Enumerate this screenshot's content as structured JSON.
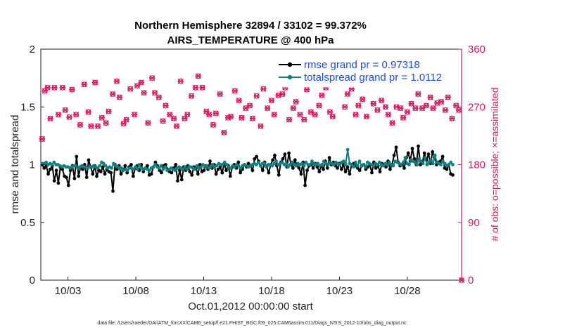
{
  "title_line1": "Northern Hemisphere 32894 / 33102 = 99.372%",
  "title_line2": "AIRS_TEMPERATURE @ 400 hPa",
  "footnote": "data file: /Users/raeder/DAI/ATM_forcXX/CAM6_setup/f.e21.FHIST_BGC.f09_025.CAM6assim.011/Diags_NTrS_2012-10/obs_diag_output.nc",
  "colors": {
    "rmse": "#000000",
    "spread": "#0e8080",
    "obs": "#d11a5c",
    "legend_text": "#1f4fd0"
  },
  "chart_data": {
    "type": "line",
    "xlabel": "Oct.01,2012 00:00:00 start",
    "ylabel": "rmse and totalspread",
    "y2label": "# of obs: o=possible; ×=assimilated",
    "x_ticks": [
      "10/03",
      "10/08",
      "10/13",
      "10/18",
      "10/23",
      "10/28"
    ],
    "x_tick_days": [
      2,
      7,
      12,
      17,
      22,
      27
    ],
    "xlim_days": [
      0,
      31
    ],
    "ylim": [
      0,
      2
    ],
    "y_ticks": [
      "0",
      "0.5",
      "1",
      "1.5",
      "2"
    ],
    "y2lim": [
      0,
      360
    ],
    "y2_ticks": [
      "0",
      "90",
      "180",
      "270",
      "360"
    ],
    "grid": false,
    "legend": "top-right",
    "legend_entries": [
      "rmse grand pr = 0.97318",
      "totalspread grand pr = 1.0112"
    ],
    "sample_interval_days": 0.25,
    "series": [
      {
        "name": "rmse grand pr = 0.97318",
        "axis": "left",
        "marker": "filled-circle",
        "values": [
          1.0,
          0.97,
          0.99,
          0.92,
          0.96,
          0.99,
          0.86,
          0.95,
          0.84,
          0.98,
          0.96,
          0.9,
          0.89,
          0.82,
          0.95,
          0.99,
          0.88,
          1.07,
          0.9,
          0.98,
          0.96,
          1.0,
          0.89,
          1.04,
          0.98,
          0.92,
          0.99,
          0.9,
          0.95,
          0.94,
          0.98,
          0.92,
          0.96,
          0.94,
          0.93,
          0.77,
          1.0,
          0.96,
          0.99,
          0.92,
          0.95,
          0.99,
          0.93,
          0.98,
          1.0,
          0.9,
          0.97,
          0.99,
          0.95,
          1.0,
          0.94,
          0.97,
          0.99,
          0.91,
          0.92,
          0.98,
          1.02,
          0.99,
          0.95,
          0.93,
          0.99,
          1.0,
          0.96,
          0.94,
          0.93,
          0.97,
          1.0,
          0.86,
          0.95,
          0.87,
          0.98,
          0.95,
          0.99,
          0.94,
          0.91,
          0.98,
          0.97,
          0.92,
          1.0,
          0.94,
          0.95,
          0.99,
          0.96,
          1.03,
          0.97,
          1.0,
          0.92,
          0.96,
          0.98,
          0.93,
          1.01,
          0.95,
          0.99,
          0.9,
          0.98,
          1.0,
          0.97,
          1.02,
          0.93,
          0.96,
          1.0,
          0.98,
          1.01,
          0.99,
          0.95,
          1.05,
          1.07,
          1.03,
          0.99,
          0.95,
          1.02,
          0.98,
          0.93,
          1.0,
          1.04,
          1.08,
          0.99,
          0.91,
          1.02,
          1.05,
          1.09,
          0.98,
          1.1,
          1.0,
          0.97,
          1.04,
          0.99,
          0.97,
          0.92,
          1.02,
          0.82,
          0.95,
          0.99,
          1.0,
          0.97,
          1.01,
          0.98,
          0.94,
          0.99,
          0.96,
          1.03,
          0.97,
          1.06,
          1.0,
          1.02,
          0.99,
          0.97,
          1.01,
          0.96,
          1.0,
          0.94,
          0.98,
          0.92,
          1.0,
          1.01,
          0.99,
          0.97,
          0.95,
          0.99,
          1.0,
          0.96,
          0.98,
          1.0,
          0.93,
          1.02,
          0.97,
          0.99,
          0.94,
          1.01,
          1.0,
          0.98,
          1.03,
          0.96,
          1.0,
          1.08,
          1.15,
          1.02,
          0.99,
          1.0,
          0.97,
          1.06,
          1.1,
          1.03,
          1.14,
          1.05,
          1.0,
          1.16,
          1.0,
          1.02,
          1.1,
          1.04,
          1.09,
          1.01,
          1.11,
          1.06,
          1.0,
          1.02,
          1.03,
          1.07,
          0.97,
          0.96,
          1.0,
          0.92,
          0.91
        ],
        "color": "#000000"
      },
      {
        "name": "totalspread grand pr = 1.0112",
        "axis": "left",
        "marker": "filled-circle",
        "values": [
          1.01,
          1.01,
          1.02,
          1.0,
          1.01,
          1.0,
          1.02,
          1.0,
          1.0,
          0.99,
          0.98,
          0.99,
          0.98,
          0.98,
          0.97,
          0.98,
          0.99,
          0.99,
          0.97,
          0.98,
          0.99,
          0.98,
          0.98,
          0.97,
          0.98,
          0.98,
          0.99,
          0.98,
          0.97,
          0.99,
          1.02,
          1.01,
          0.99,
          0.97,
          0.98,
          0.97,
          1.01,
          0.99,
          0.98,
          0.97,
          0.97,
          0.95,
          0.96,
          0.95,
          0.97,
          0.97,
          0.96,
          0.98,
          0.96,
          1.0,
          0.97,
          0.96,
          0.97,
          0.96,
          0.95,
          0.97,
          0.98,
          1.0,
          0.98,
          0.97,
          0.99,
          0.96,
          0.98,
          0.95,
          0.96,
          0.97,
          0.96,
          0.95,
          0.97,
          0.98,
          0.97,
          0.96,
          0.98,
          0.96,
          0.98,
          0.98,
          0.97,
          0.96,
          0.99,
          0.97,
          0.98,
          1.0,
          0.98,
          0.99,
          0.97,
          0.98,
          1.0,
          0.98,
          0.99,
          1.01,
          1.0,
          1.0,
          1.02,
          1.0,
          0.98,
          0.97,
          0.99,
          0.98,
          1.0,
          0.99,
          0.97,
          0.99,
          1.0,
          0.99,
          0.98,
          0.99,
          1.0,
          1.01,
          1.0,
          1.02,
          0.99,
          1.01,
          1.01,
          0.98,
          1.0,
          1.0,
          0.99,
          1.01,
          1.03,
          1.0,
          1.01,
          1.02,
          1.0,
          1.01,
          0.98,
          1.0,
          1.02,
          1.0,
          0.99,
          1.01,
          1.0,
          1.01,
          0.99,
          1.02,
          1.0,
          1.0,
          1.03,
          1.01,
          1.0,
          1.01,
          0.99,
          1.0,
          1.03,
          1.01,
          1.0,
          1.02,
          1.01,
          1.0,
          1.02,
          1.01,
          1.0,
          1.02,
          1.03,
          1.0,
          1.13,
          1.01,
          1.0,
          0.98,
          1.02,
          0.99,
          1.03,
          0.99,
          1.0,
          0.98,
          1.02,
          1.01,
          1.0,
          0.99,
          1.01,
          1.0,
          1.02,
          1.0,
          0.99,
          1.01,
          1.0,
          1.02,
          1.0,
          0.99,
          1.03,
          1.02,
          1.01,
          1.0,
          1.02,
          1.06,
          1.01,
          1.0,
          1.04,
          1.03,
          1.02,
          1.0,
          1.05,
          1.03,
          1.01,
          1.06,
          1.0,
          1.02,
          1.04,
          1.01,
          1.08,
          1.02,
          1.01,
          1.0,
          1.03,
          1.01,
          0.99,
          1.0,
          1.02,
          1.0
        ],
        "color": "#0e8080"
      }
    ],
    "obs_counts": {
      "axis": "right",
      "marker_possible": "circle",
      "marker_assimilated": "cross",
      "days": [
        0.1,
        0.3,
        0.5,
        0.7,
        1.0,
        1.3,
        1.6,
        1.8,
        2.1,
        2.3,
        2.6,
        2.9,
        3.2,
        3.5,
        3.7,
        4.0,
        4.2,
        4.5,
        4.8,
        5.0,
        5.3,
        5.6,
        5.8,
        6.1,
        6.3,
        6.6,
        6.9,
        7.1,
        7.4,
        7.6,
        7.9,
        8.2,
        8.4,
        8.7,
        9.0,
        9.2,
        9.5,
        9.8,
        10.0,
        10.3,
        10.6,
        10.8,
        11.1,
        11.4,
        11.6,
        11.9,
        12.2,
        12.4,
        12.7,
        12.9,
        13.2,
        13.5,
        13.8,
        14.0,
        14.3,
        14.6,
        14.8,
        15.1,
        15.4,
        15.6,
        15.9,
        16.2,
        16.4,
        16.7,
        17.0,
        17.2,
        17.5,
        17.8,
        18.0,
        18.3,
        18.6,
        18.8,
        19.1,
        19.4,
        19.6,
        19.9,
        20.2,
        20.5,
        20.7,
        21.0,
        21.3,
        21.5,
        21.8,
        22.1,
        22.4,
        22.6,
        22.9,
        23.2,
        23.4,
        23.7,
        24.0,
        24.3,
        24.5,
        24.8,
        25.1,
        25.4,
        25.6,
        25.9,
        26.2,
        26.5,
        26.7,
        27.0,
        27.3,
        27.6,
        27.8,
        28.1,
        28.4,
        28.7,
        28.9,
        29.2,
        29.5,
        29.8,
        30.0,
        30.3,
        30.6,
        30.8,
        31.0
      ],
      "values": [
        220,
        295,
        300,
        252,
        300,
        258,
        300,
        265,
        254,
        297,
        258,
        242,
        305,
        262,
        240,
        308,
        240,
        253,
        245,
        263,
        290,
        310,
        285,
        244,
        250,
        298,
        258,
        303,
        308,
        292,
        245,
        315,
        292,
        285,
        248,
        272,
        258,
        252,
        240,
        310,
        252,
        258,
        287,
        300,
        318,
        300,
        263,
        258,
        242,
        260,
        290,
        230,
        253,
        255,
        295,
        280,
        253,
        268,
        272,
        252,
        287,
        240,
        298,
        268,
        280,
        258,
        288,
        290,
        300,
        250,
        268,
        278,
        258,
        250,
        297,
        262,
        258,
        272,
        288,
        300,
        262,
        255,
        310,
        305,
        270,
        290,
        298,
        258,
        272,
        282,
        255,
        305,
        275,
        265,
        280,
        270,
        258,
        245,
        270,
        268,
        253,
        262,
        275,
        268,
        290,
        268,
        272,
        285,
        268,
        276,
        278,
        265,
        285,
        252,
        272,
        265,
        0
      ]
    }
  }
}
